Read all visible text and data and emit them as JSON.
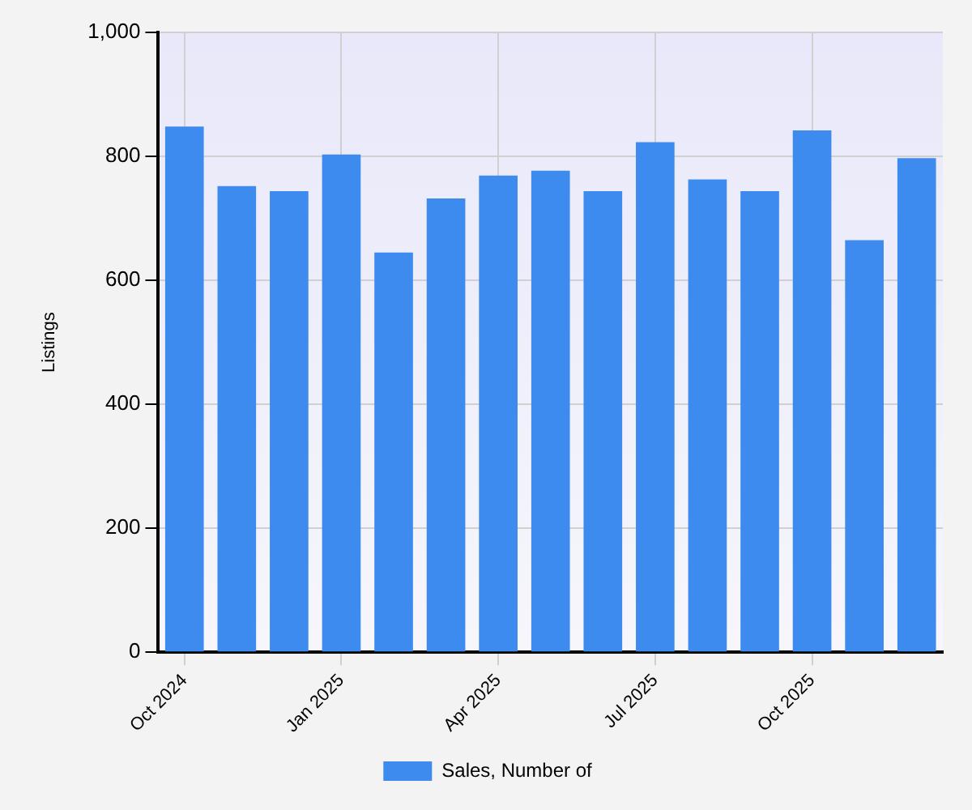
{
  "chart_data": {
    "type": "bar",
    "ylabel": "Listings",
    "categories": [
      "Oct 2024",
      null,
      null,
      "Jan 2025",
      null,
      null,
      "Apr 2025",
      null,
      null,
      "Jul 2025",
      null,
      null,
      "Oct 2025",
      null,
      null
    ],
    "series": [
      {
        "name": "Sales, Number of",
        "color": "#3d8bef",
        "values": [
          848,
          752,
          744,
          803,
          645,
          732,
          769,
          777,
          744,
          823,
          763,
          744,
          842,
          665,
          797
        ]
      }
    ],
    "ylim": [
      0,
      1000
    ],
    "yticks": [
      0,
      200,
      400,
      600,
      800,
      {
        "value": 1000,
        "label": "1,000"
      }
    ],
    "grid": true,
    "legend": "bottom"
  }
}
